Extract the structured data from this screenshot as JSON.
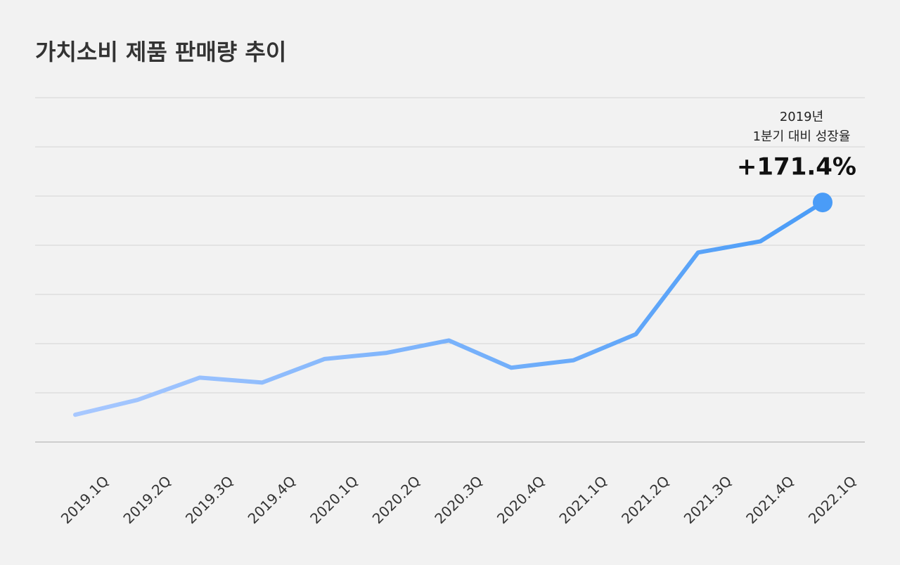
{
  "chart_data": {
    "type": "line",
    "title": "가치소비 제품 판매량 추이",
    "categories": [
      "2019.1Q",
      "2019.2Q",
      "2019.3Q",
      "2019.4Q",
      "2020.1Q",
      "2020.2Q",
      "2020.3Q",
      "2020.4Q",
      "2021.1Q",
      "2021.2Q",
      "2021.3Q",
      "2021.4Q",
      "2022.1Q"
    ],
    "series": [
      {
        "color": "#4a9cf7",
        "start_color": "#a8c8ff",
        "values": [
          100,
          112,
          130,
          126,
          145,
          150,
          160,
          138,
          144,
          165,
          231,
          240,
          271.4
        ]
      }
    ],
    "ylim": [
      78,
      356
    ],
    "grid": true,
    "annotation": {
      "lines": [
        "2019년",
        "1분기 대비 성장율"
      ],
      "value": "+171.4%"
    }
  }
}
